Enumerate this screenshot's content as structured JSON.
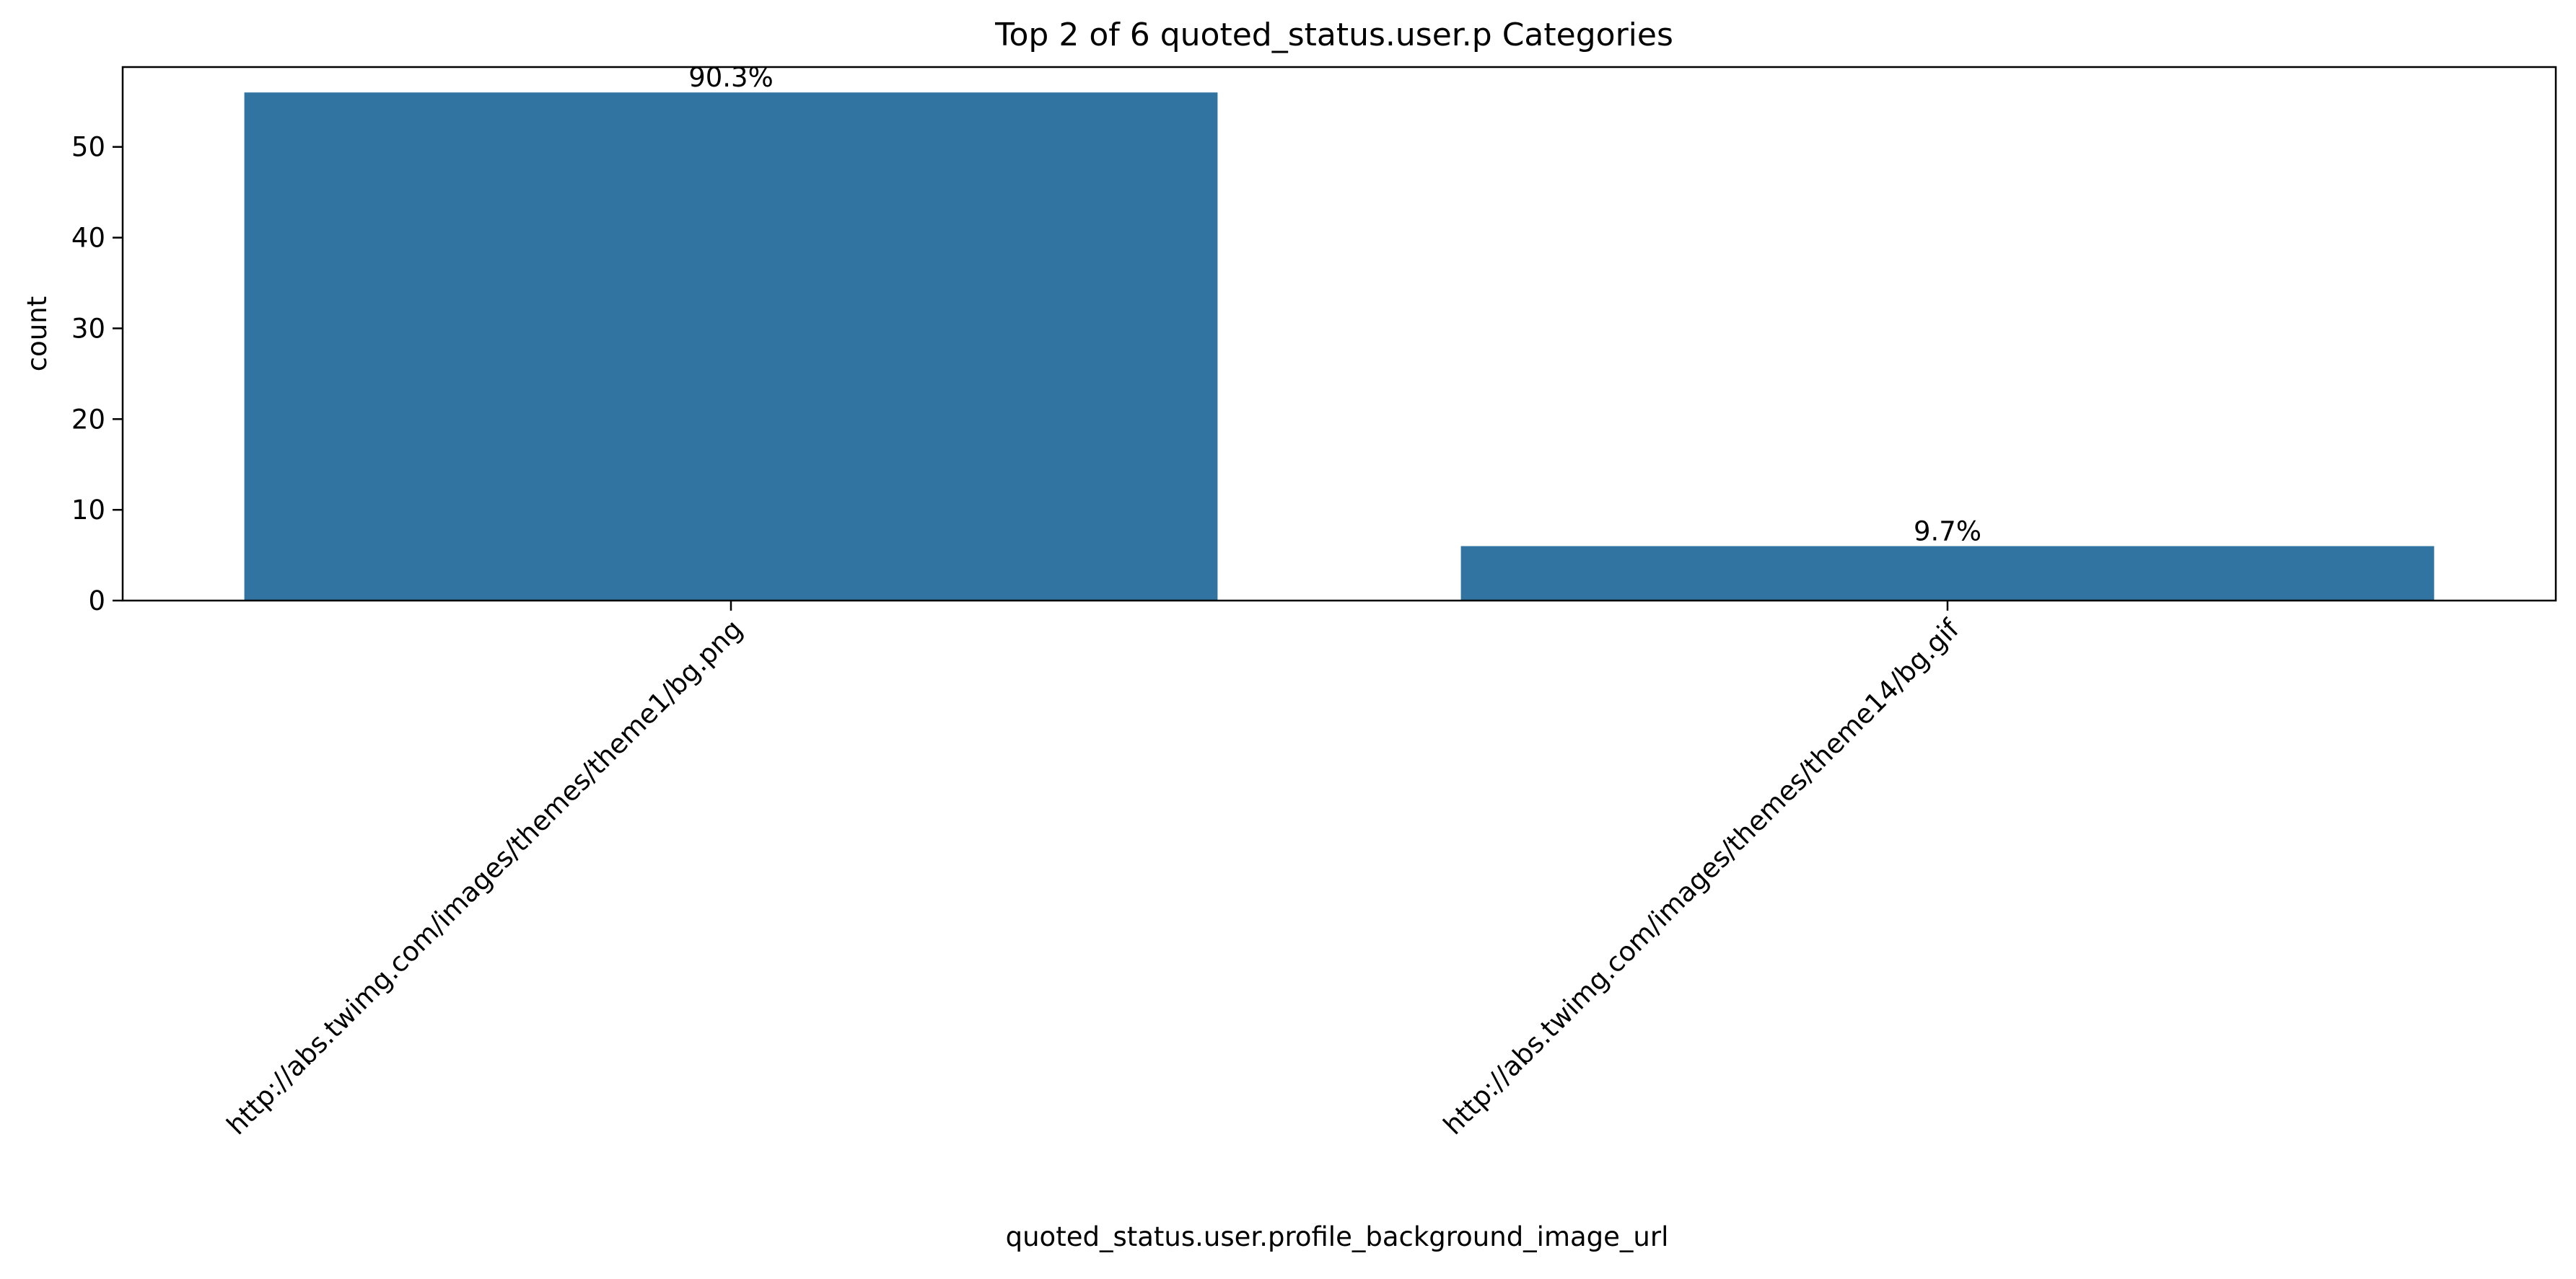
{
  "chart_data": {
    "type": "bar",
    "title": "Top 2 of 6 quoted_status.user.p Categories",
    "xlabel": "quoted_status.user.profile_background_image_url",
    "ylabel": "count",
    "categories": [
      "http://abs.twimg.com/images/themes/theme1/bg.png",
      "http://abs.twimg.com/images/themes/theme14/bg.gif"
    ],
    "values": [
      56,
      6
    ],
    "data_labels": [
      "90.3%",
      "9.7%"
    ],
    "ylim": [
      0,
      58.8
    ],
    "yticks": [
      0,
      10,
      20,
      30,
      40,
      50
    ],
    "grid": false,
    "bar_color": "#3274a1"
  }
}
